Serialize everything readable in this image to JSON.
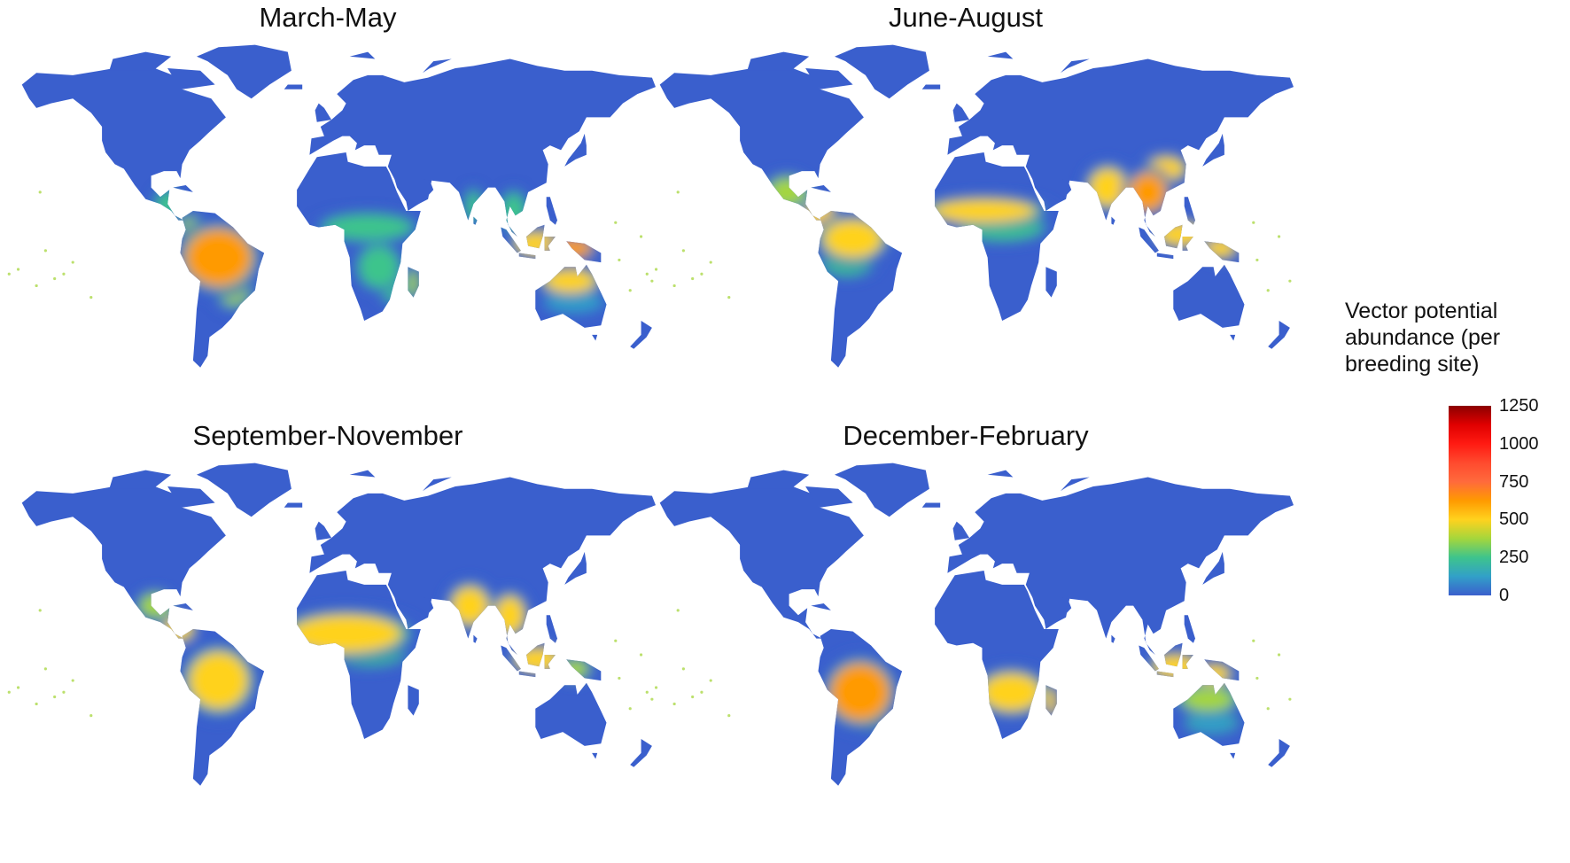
{
  "figure": {
    "panels": [
      {
        "id": "mam",
        "title": "March-May",
        "hotspots": [
          {
            "lon": -60,
            "lat": -8,
            "rx": 18,
            "ry": 12,
            "value": 650
          },
          {
            "lon": -52,
            "lat": -20,
            "rx": 9,
            "ry": 8,
            "value": 400
          },
          {
            "lon": -75,
            "lat": 3,
            "rx": 6,
            "ry": 6,
            "value": 350
          },
          {
            "lon": -88,
            "lat": 15,
            "rx": 6,
            "ry": 5,
            "value": 220
          },
          {
            "lon": 22,
            "lat": 5,
            "rx": 22,
            "ry": 5,
            "value": 220
          },
          {
            "lon": 28,
            "lat": -12,
            "rx": 10,
            "ry": 8,
            "value": 300
          },
          {
            "lon": 35,
            "lat": -20,
            "rx": 6,
            "ry": 6,
            "value": 250
          },
          {
            "lon": 47,
            "lat": -19,
            "rx": 3,
            "ry": 6,
            "value": 400
          },
          {
            "lon": 80,
            "lat": 14,
            "rx": 4,
            "ry": 6,
            "value": 250
          },
          {
            "lon": 102,
            "lat": 12,
            "rx": 6,
            "ry": 7,
            "value": 300
          },
          {
            "lon": 115,
            "lat": -2,
            "rx": 12,
            "ry": 5,
            "value": 550
          },
          {
            "lon": 135,
            "lat": -4,
            "rx": 10,
            "ry": 4,
            "value": 600
          },
          {
            "lon": 133,
            "lat": -18,
            "rx": 14,
            "ry": 5,
            "value": 450
          },
          {
            "lon": 135,
            "lat": -27,
            "rx": 14,
            "ry": 4,
            "value": 150
          }
        ]
      },
      {
        "id": "jja",
        "title": "June-August",
        "hotspots": [
          {
            "lon": -62,
            "lat": 0,
            "rx": 16,
            "ry": 8,
            "value": 550
          },
          {
            "lon": -65,
            "lat": -10,
            "rx": 12,
            "ry": 5,
            "value": 300
          },
          {
            "lon": -98,
            "lat": 20,
            "rx": 10,
            "ry": 6,
            "value": 400
          },
          {
            "lon": -80,
            "lat": 10,
            "rx": 8,
            "ry": 6,
            "value": 450
          },
          {
            "lon": 10,
            "lat": 12,
            "rx": 28,
            "ry": 5,
            "value": 500
          },
          {
            "lon": 20,
            "lat": 5,
            "rx": 20,
            "ry": 5,
            "value": 300
          },
          {
            "lon": 78,
            "lat": 22,
            "rx": 10,
            "ry": 8,
            "value": 550
          },
          {
            "lon": 100,
            "lat": 20,
            "rx": 10,
            "ry": 8,
            "value": 650
          },
          {
            "lon": 110,
            "lat": 30,
            "rx": 10,
            "ry": 5,
            "value": 450
          },
          {
            "lon": 118,
            "lat": 2,
            "rx": 12,
            "ry": 5,
            "value": 500
          },
          {
            "lon": 140,
            "lat": -4,
            "rx": 8,
            "ry": 4,
            "value": 450
          }
        ]
      },
      {
        "id": "son",
        "title": "September-November",
        "hotspots": [
          {
            "lon": -60,
            "lat": -10,
            "rx": 16,
            "ry": 12,
            "value": 450
          },
          {
            "lon": -95,
            "lat": 22,
            "rx": 8,
            "ry": 5,
            "value": 400
          },
          {
            "lon": -82,
            "lat": 12,
            "rx": 8,
            "ry": 5,
            "value": 450
          },
          {
            "lon": 10,
            "lat": 10,
            "rx": 30,
            "ry": 8,
            "value": 500
          },
          {
            "lon": 22,
            "lat": 2,
            "rx": 18,
            "ry": 5,
            "value": 280
          },
          {
            "lon": 78,
            "lat": 22,
            "rx": 10,
            "ry": 8,
            "value": 500
          },
          {
            "lon": 100,
            "lat": 18,
            "rx": 8,
            "ry": 8,
            "value": 550
          },
          {
            "lon": 115,
            "lat": -1,
            "rx": 12,
            "ry": 5,
            "value": 450
          },
          {
            "lon": 135,
            "lat": -5,
            "rx": 8,
            "ry": 4,
            "value": 400
          }
        ]
      },
      {
        "id": "djf",
        "title": "December-February",
        "hotspots": [
          {
            "lon": -58,
            "lat": -15,
            "rx": 16,
            "ry": 12,
            "value": 600
          },
          {
            "lon": -52,
            "lat": -25,
            "rx": 8,
            "ry": 6,
            "value": 400
          },
          {
            "lon": 25,
            "lat": -15,
            "rx": 16,
            "ry": 8,
            "value": 450
          },
          {
            "lon": 47,
            "lat": -19,
            "rx": 3,
            "ry": 6,
            "value": 450
          },
          {
            "lon": 115,
            "lat": -4,
            "rx": 12,
            "ry": 5,
            "value": 500
          },
          {
            "lon": 135,
            "lat": -7,
            "rx": 10,
            "ry": 4,
            "value": 450
          },
          {
            "lon": 133,
            "lat": -18,
            "rx": 14,
            "ry": 5,
            "value": 350
          },
          {
            "lon": 135,
            "lat": -28,
            "rx": 12,
            "ry": 4,
            "value": 180
          }
        ]
      }
    ],
    "legend": {
      "title": "Vector potential abundance (per breeding site)",
      "ticks": [
        1250,
        1000,
        750,
        500,
        250,
        0
      ],
      "min": 0,
      "max": 1250,
      "colors": [
        "#3a5fcd",
        "#32a0c8",
        "#3ec48c",
        "#a5d63c",
        "#ffd21e",
        "#ff9a00",
        "#ff6a3c",
        "#ff4a2e",
        "#ff1a12",
        "#e00000",
        "#8b0000"
      ]
    },
    "colors": {
      "land_base": "#3a5fcd",
      "background": "#ffffff"
    }
  }
}
